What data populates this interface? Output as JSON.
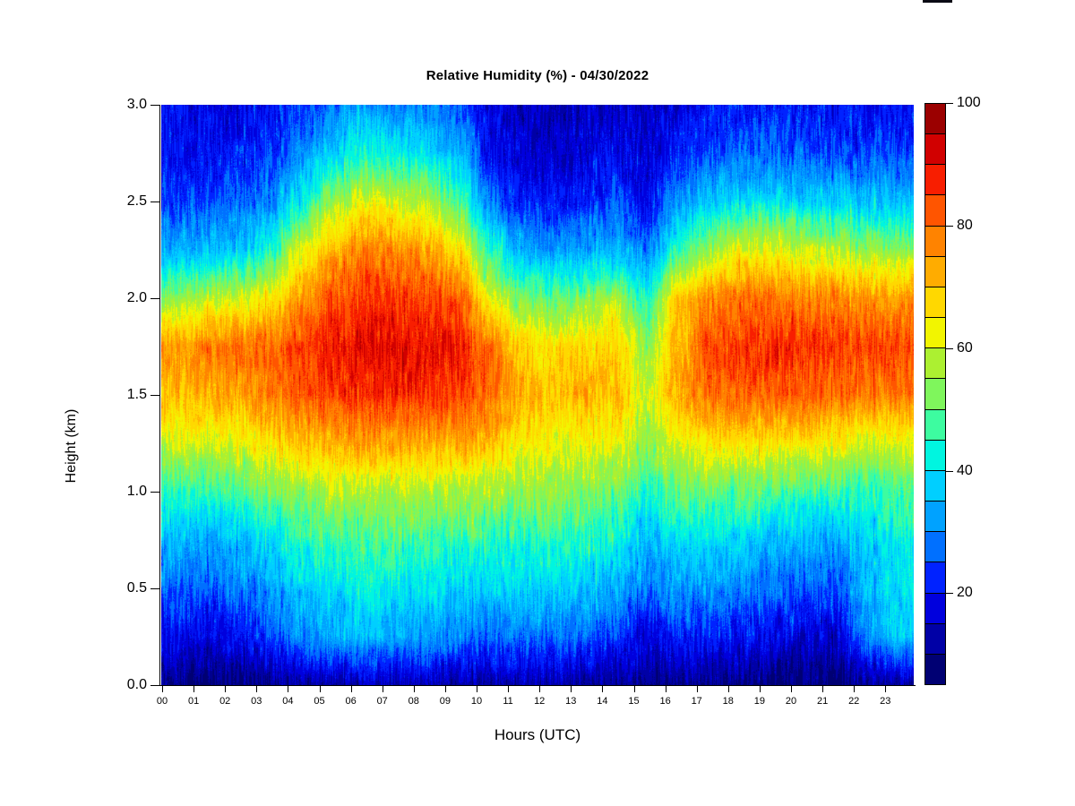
{
  "chart_data": {
    "type": "heatmap",
    "title": "Relative Humidity (%) - 04/30/2022",
    "xlabel": "Hours (UTC)",
    "ylabel": "Height (km)",
    "x_tick_labels": [
      "00",
      "01",
      "02",
      "03",
      "04",
      "05",
      "06",
      "07",
      "08",
      "09",
      "10",
      "11",
      "12",
      "13",
      "14",
      "15",
      "16",
      "17",
      "18",
      "19",
      "20",
      "21",
      "22",
      "23"
    ],
    "y_tick_labels": [
      "0.0",
      "0.5",
      "1.0",
      "1.5",
      "2.0",
      "2.5",
      "3.0"
    ],
    "x_hours": [
      0,
      1,
      2,
      3,
      4,
      5,
      6,
      7,
      8,
      9,
      10,
      11,
      12,
      13,
      14,
      15,
      16,
      17,
      18,
      19,
      20,
      21,
      22,
      23
    ],
    "y_heights_km": [
      0,
      0.25,
      0.5,
      0.75,
      1.0,
      1.25,
      1.5,
      1.75,
      2.0,
      2.25,
      2.5,
      2.75,
      3.0
    ],
    "xlim": [
      0,
      24
    ],
    "ylim": [
      0,
      3
    ],
    "zlim": [
      5,
      100
    ],
    "z_units": "%",
    "grid": false,
    "colorbar": {
      "position": "right",
      "bin_size": 5,
      "tick_values": [
        20,
        40,
        60,
        80,
        100
      ],
      "tick_labels": [
        "20",
        "40",
        "60",
        "80",
        "100"
      ],
      "colors_low_to_high": [
        "#000073",
        "#0000A6",
        "#0000DD",
        "#0022FF",
        "#0070FF",
        "#00A2FF",
        "#00CFFF",
        "#00F5E0",
        "#3DFCA0",
        "#7FF65C",
        "#ACF031",
        "#F2F500",
        "#FFD800",
        "#FFAC00",
        "#FF8300",
        "#FF5500",
        "#F81E00",
        "#D10000",
        "#9B0000"
      ]
    },
    "values_rh_percent_by_height": [
      [
        9,
        8,
        9,
        10,
        12,
        13,
        14,
        13,
        13,
        12,
        13,
        13,
        13,
        12,
        11,
        9,
        10,
        10,
        9,
        8,
        8,
        8,
        11,
        12
      ],
      [
        20,
        18,
        20,
        24,
        30,
        33,
        35,
        33,
        32,
        30,
        28,
        28,
        28,
        26,
        24,
        18,
        22,
        22,
        20,
        18,
        17,
        16,
        30,
        38
      ],
      [
        27,
        26,
        28,
        32,
        38,
        40,
        42,
        40,
        40,
        38,
        38,
        38,
        38,
        36,
        34,
        28,
        32,
        32,
        30,
        28,
        26,
        25,
        35,
        40
      ],
      [
        35,
        34,
        36,
        40,
        45,
        47,
        48,
        48,
        47,
        46,
        45,
        45,
        45,
        44,
        42,
        36,
        40,
        40,
        38,
        36,
        34,
        33,
        38,
        42
      ],
      [
        47,
        46,
        48,
        52,
        55,
        58,
        58,
        58,
        57,
        57,
        56,
        55,
        55,
        54,
        52,
        45,
        50,
        50,
        50,
        48,
        47,
        46,
        45,
        48
      ],
      [
        60,
        60,
        62,
        65,
        70,
        72,
        74,
        74,
        73,
        72,
        70,
        64,
        62,
        62,
        62,
        54,
        62,
        66,
        66,
        66,
        65,
        64,
        60,
        62
      ],
      [
        70,
        72,
        74,
        78,
        82,
        85,
        87,
        87,
        86,
        85,
        80,
        72,
        70,
        72,
        70,
        60,
        72,
        80,
        82,
        82,
        82,
        80,
        78,
        78
      ],
      [
        76,
        78,
        80,
        80,
        85,
        88,
        90,
        90,
        89,
        88,
        80,
        68,
        66,
        68,
        68,
        55,
        72,
        84,
        86,
        87,
        86,
        85,
        84,
        84
      ],
      [
        55,
        58,
        60,
        65,
        75,
        83,
        86,
        86,
        85,
        82,
        62,
        52,
        50,
        52,
        56,
        46,
        68,
        76,
        80,
        80,
        78,
        78,
        76,
        75
      ],
      [
        33,
        35,
        36,
        45,
        62,
        72,
        78,
        76,
        74,
        66,
        45,
        35,
        32,
        33,
        35,
        28,
        45,
        55,
        62,
        62,
        60,
        58,
        56,
        54
      ],
      [
        24,
        25,
        26,
        30,
        42,
        55,
        62,
        60,
        57,
        48,
        28,
        22,
        20,
        22,
        24,
        20,
        32,
        38,
        40,
        40,
        38,
        38,
        36,
        35
      ],
      [
        20,
        20,
        21,
        23,
        30,
        38,
        44,
        42,
        40,
        34,
        20,
        16,
        15,
        17,
        18,
        16,
        22,
        25,
        27,
        27,
        26,
        25,
        24,
        24
      ],
      [
        20,
        18,
        19,
        20,
        24,
        28,
        32,
        30,
        29,
        26,
        17,
        14,
        14,
        15,
        16,
        15,
        18,
        20,
        22,
        22,
        21,
        20,
        20,
        20
      ]
    ]
  }
}
